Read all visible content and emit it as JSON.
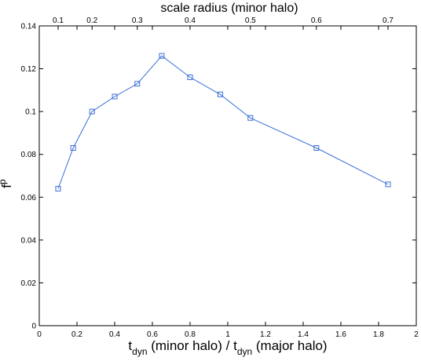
{
  "chart_data": {
    "type": "line",
    "x": [
      0.1,
      0.18,
      0.28,
      0.4,
      0.52,
      0.65,
      0.8,
      0.96,
      1.12,
      1.47,
      1.85
    ],
    "series": [
      {
        "values": [
          0.064,
          0.083,
          0.1,
          0.107,
          0.113,
          0.126,
          0.116,
          0.108,
          0.097,
          0.083,
          0.066
        ],
        "color": "#3b6fd8",
        "marker": "square"
      }
    ],
    "xlim": [
      0,
      2
    ],
    "ylim": [
      0,
      0.14
    ],
    "x_ticks": [
      "0",
      "0.2",
      "0.4",
      "0.6",
      "0.8",
      "1",
      "1.2",
      "1.4",
      "1.6",
      "1.8",
      "2"
    ],
    "y_ticks": [
      "0",
      "0.02",
      "0.04",
      "0.06",
      "0.08",
      "0.1",
      "0.12",
      "0.14"
    ],
    "top_axis": {
      "title": "scale radius (minor halo)",
      "ticks": [
        {
          "label": "0.1",
          "x": 0.1
        },
        {
          "label": "0.2",
          "x": 0.28
        },
        {
          "label": "0.3",
          "x": 0.52
        },
        {
          "label": "0.4",
          "x": 0.8
        },
        {
          "label": "0.5",
          "x": 1.12
        },
        {
          "label": "0.6",
          "x": 1.47
        },
        {
          "label": "0.7",
          "x": 1.85
        }
      ]
    },
    "xlabel": {
      "t1": "t",
      "sub1": "dyn",
      "mid": " (minor halo) / t",
      "sub2": "dyn",
      "end": " (major halo)"
    },
    "ylabel": {
      "base": "f",
      "sup": "p"
    },
    "grid": false
  }
}
